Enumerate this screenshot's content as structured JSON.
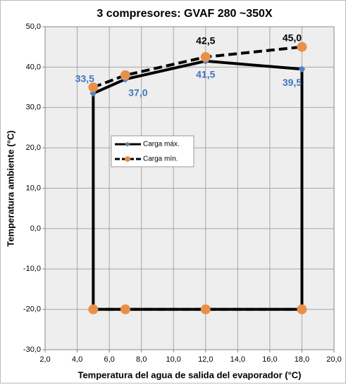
{
  "chart_data": {
    "type": "line",
    "title": "3 compresores: GVAF 280 ~350X",
    "x_label": "Temperatura del agua de salida del evaporador (°C)",
    "y_label": "Temperatura ambiente (°C)",
    "xlim": [
      2,
      20
    ],
    "ylim": [
      -30,
      50
    ],
    "xticks": [
      {
        "value": 2,
        "label": "2,0"
      },
      {
        "value": 4,
        "label": "4,0"
      },
      {
        "value": 6,
        "label": "6,0"
      },
      {
        "value": 8,
        "label": "8,0"
      },
      {
        "value": 10,
        "label": "10,0"
      },
      {
        "value": 12,
        "label": "12,0"
      },
      {
        "value": 14,
        "label": "14,0"
      },
      {
        "value": 16,
        "label": "16,0"
      },
      {
        "value": 18,
        "label": "18,0"
      },
      {
        "value": 20,
        "label": "20,0"
      }
    ],
    "yticks": [
      {
        "value": -30,
        "label": "-30,0"
      },
      {
        "value": -20,
        "label": "-20,0"
      },
      {
        "value": -10,
        "label": "-10,0"
      },
      {
        "value": 0,
        "label": "0,0"
      },
      {
        "value": 10,
        "label": "10,0"
      },
      {
        "value": 20,
        "label": "20,0"
      },
      {
        "value": 30,
        "label": "30,0"
      },
      {
        "value": 40,
        "label": "40,0"
      },
      {
        "value": 50,
        "label": "50,0"
      }
    ],
    "grid": true,
    "legend_position": "center-left",
    "series": [
      {
        "name": "Carga mín.",
        "color": "#e8904a",
        "line_color": "#000000",
        "dashed": true,
        "marker": "circle",
        "label_color": "#000000",
        "x": [
          5,
          7,
          12,
          18,
          null,
          5,
          7,
          12,
          18
        ],
        "values": [
          35,
          38,
          42.5,
          45,
          null,
          -20,
          -20,
          -20,
          -20
        ],
        "value_labels": [
          null,
          null,
          "42,5",
          "45,0",
          null,
          null,
          null,
          null,
          null
        ]
      },
      {
        "name": "Carga máx.",
        "color": "#4f81bd",
        "line_color": "#000000",
        "dashed": false,
        "marker": "diamond",
        "label_color": "#4472c4",
        "x": [
          5,
          5,
          7,
          12,
          18,
          18,
          5
        ],
        "values": [
          -20,
          33.5,
          37,
          41.5,
          39.5,
          -20,
          -20
        ],
        "value_labels": [
          null,
          "33,5",
          "37,0",
          "41,5",
          "39,5",
          null,
          null
        ]
      }
    ]
  }
}
